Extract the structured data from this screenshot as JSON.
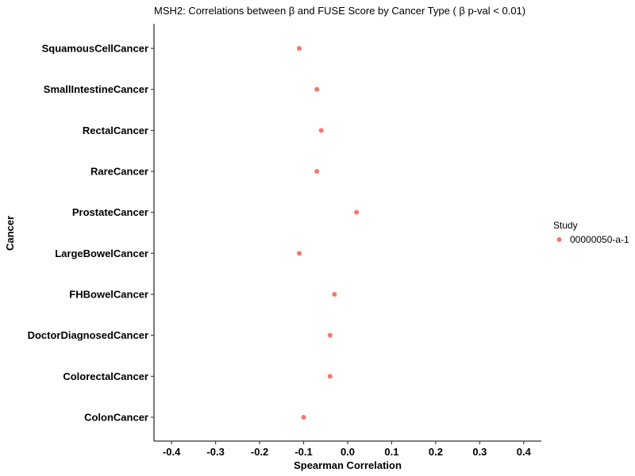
{
  "chart_data": {
    "type": "scatter",
    "title": "MSH2: Correlations between  β  and FUSE Score by Cancer Type ( β  p-val < 0.01)",
    "xlabel": "Spearman Correlation",
    "ylabel": "Cancer",
    "xlim": [
      -0.44,
      0.44
    ],
    "x_ticks": [
      -0.4,
      -0.3,
      -0.2,
      -0.1,
      0.0,
      0.1,
      0.2,
      0.3,
      0.4
    ],
    "x_tick_labels": [
      "-0.4",
      "-0.3",
      "-0.2",
      "-0.1",
      "0.0",
      "0.1",
      "0.2",
      "0.3",
      "0.4"
    ],
    "categories": [
      "ColonCancer",
      "ColorectalCancer",
      "DoctorDiagnosedCancer",
      "FHBowelCancer",
      "LargeBowelCancer",
      "ProstateCancer",
      "RareCancer",
      "RectalCancer",
      "SmallIntestineCancer",
      "SquamousCellCancer"
    ],
    "series": [
      {
        "name": "00000050-a-1",
        "color": "#f8766d",
        "values": [
          -0.1,
          -0.04,
          -0.04,
          -0.03,
          -0.11,
          0.02,
          -0.07,
          -0.06,
          -0.07,
          -0.11
        ]
      }
    ],
    "grid": false,
    "legend": {
      "title": "Study",
      "placement": "right"
    }
  }
}
